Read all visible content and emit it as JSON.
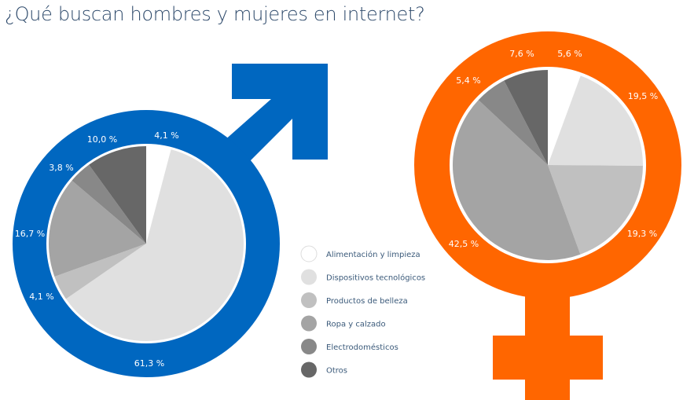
{
  "chart_data": {
    "type": "pie",
    "title": "¿Qué buscan hombres y mujeres en internet?",
    "categories": [
      "Alimentación y limpieza",
      "Dispositivos tecnológicos",
      "Productos de belleza",
      "Ropa y calzado",
      "Electrodomésticos",
      "Otros"
    ],
    "category_colors": [
      "#ffffff",
      "#e0e0e0",
      "#c0c0c0",
      "#a4a4a4",
      "#888888",
      "#676767"
    ],
    "legend_position": "center",
    "series": [
      {
        "name": "Hombres",
        "symbol": "male",
        "ring_color": "#0067c0",
        "values": [
          4.1,
          61.3,
          4.1,
          16.7,
          3.8,
          10.0
        ],
        "labels": [
          "4,1 %",
          "61,3 %",
          "4,1 %",
          "16,7 %",
          "3,8 %",
          "10,0 %"
        ]
      },
      {
        "name": "Mujeres",
        "symbol": "female",
        "ring_color": "#ff6600",
        "values": [
          5.6,
          19.5,
          19.3,
          42.5,
          5.4,
          7.6
        ],
        "labels": [
          "5,6 %",
          "19,5 %",
          "19,3 %",
          "42,5 %",
          "5,4 %",
          "7,6 %"
        ]
      }
    ]
  }
}
